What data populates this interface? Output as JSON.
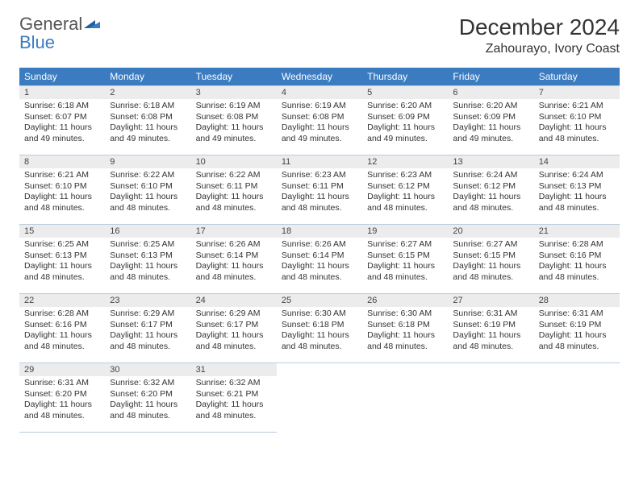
{
  "brand": {
    "word1": "General",
    "word2": "Blue"
  },
  "title": "December 2024",
  "location": "Zahourayo, Ivory Coast",
  "colors": {
    "header_bg": "#3b7bbf",
    "header_text": "#ffffff",
    "daynum_bg": "#ececec",
    "cell_border": "#b8cce0",
    "page_bg": "#ffffff",
    "text": "#333333",
    "logo_gray": "#555555",
    "logo_blue": "#3b7bbf"
  },
  "typography": {
    "month_title_size": 28,
    "location_size": 16,
    "day_header_size": 12,
    "body_size": 10.5
  },
  "day_headers": [
    "Sunday",
    "Monday",
    "Tuesday",
    "Wednesday",
    "Thursday",
    "Friday",
    "Saturday"
  ],
  "labels": {
    "sunrise": "Sunrise:",
    "sunset": "Sunset:",
    "daylight": "Daylight:"
  },
  "weeks": [
    [
      {
        "num": "1",
        "sunrise": "6:18 AM",
        "sunset": "6:07 PM",
        "daylight": "11 hours and 49 minutes."
      },
      {
        "num": "2",
        "sunrise": "6:18 AM",
        "sunset": "6:08 PM",
        "daylight": "11 hours and 49 minutes."
      },
      {
        "num": "3",
        "sunrise": "6:19 AM",
        "sunset": "6:08 PM",
        "daylight": "11 hours and 49 minutes."
      },
      {
        "num": "4",
        "sunrise": "6:19 AM",
        "sunset": "6:08 PM",
        "daylight": "11 hours and 49 minutes."
      },
      {
        "num": "5",
        "sunrise": "6:20 AM",
        "sunset": "6:09 PM",
        "daylight": "11 hours and 49 minutes."
      },
      {
        "num": "6",
        "sunrise": "6:20 AM",
        "sunset": "6:09 PM",
        "daylight": "11 hours and 49 minutes."
      },
      {
        "num": "7",
        "sunrise": "6:21 AM",
        "sunset": "6:10 PM",
        "daylight": "11 hours and 48 minutes."
      }
    ],
    [
      {
        "num": "8",
        "sunrise": "6:21 AM",
        "sunset": "6:10 PM",
        "daylight": "11 hours and 48 minutes."
      },
      {
        "num": "9",
        "sunrise": "6:22 AM",
        "sunset": "6:10 PM",
        "daylight": "11 hours and 48 minutes."
      },
      {
        "num": "10",
        "sunrise": "6:22 AM",
        "sunset": "6:11 PM",
        "daylight": "11 hours and 48 minutes."
      },
      {
        "num": "11",
        "sunrise": "6:23 AM",
        "sunset": "6:11 PM",
        "daylight": "11 hours and 48 minutes."
      },
      {
        "num": "12",
        "sunrise": "6:23 AM",
        "sunset": "6:12 PM",
        "daylight": "11 hours and 48 minutes."
      },
      {
        "num": "13",
        "sunrise": "6:24 AM",
        "sunset": "6:12 PM",
        "daylight": "11 hours and 48 minutes."
      },
      {
        "num": "14",
        "sunrise": "6:24 AM",
        "sunset": "6:13 PM",
        "daylight": "11 hours and 48 minutes."
      }
    ],
    [
      {
        "num": "15",
        "sunrise": "6:25 AM",
        "sunset": "6:13 PM",
        "daylight": "11 hours and 48 minutes."
      },
      {
        "num": "16",
        "sunrise": "6:25 AM",
        "sunset": "6:13 PM",
        "daylight": "11 hours and 48 minutes."
      },
      {
        "num": "17",
        "sunrise": "6:26 AM",
        "sunset": "6:14 PM",
        "daylight": "11 hours and 48 minutes."
      },
      {
        "num": "18",
        "sunrise": "6:26 AM",
        "sunset": "6:14 PM",
        "daylight": "11 hours and 48 minutes."
      },
      {
        "num": "19",
        "sunrise": "6:27 AM",
        "sunset": "6:15 PM",
        "daylight": "11 hours and 48 minutes."
      },
      {
        "num": "20",
        "sunrise": "6:27 AM",
        "sunset": "6:15 PM",
        "daylight": "11 hours and 48 minutes."
      },
      {
        "num": "21",
        "sunrise": "6:28 AM",
        "sunset": "6:16 PM",
        "daylight": "11 hours and 48 minutes."
      }
    ],
    [
      {
        "num": "22",
        "sunrise": "6:28 AM",
        "sunset": "6:16 PM",
        "daylight": "11 hours and 48 minutes."
      },
      {
        "num": "23",
        "sunrise": "6:29 AM",
        "sunset": "6:17 PM",
        "daylight": "11 hours and 48 minutes."
      },
      {
        "num": "24",
        "sunrise": "6:29 AM",
        "sunset": "6:17 PM",
        "daylight": "11 hours and 48 minutes."
      },
      {
        "num": "25",
        "sunrise": "6:30 AM",
        "sunset": "6:18 PM",
        "daylight": "11 hours and 48 minutes."
      },
      {
        "num": "26",
        "sunrise": "6:30 AM",
        "sunset": "6:18 PM",
        "daylight": "11 hours and 48 minutes."
      },
      {
        "num": "27",
        "sunrise": "6:31 AM",
        "sunset": "6:19 PM",
        "daylight": "11 hours and 48 minutes."
      },
      {
        "num": "28",
        "sunrise": "6:31 AM",
        "sunset": "6:19 PM",
        "daylight": "11 hours and 48 minutes."
      }
    ],
    [
      {
        "num": "29",
        "sunrise": "6:31 AM",
        "sunset": "6:20 PM",
        "daylight": "11 hours and 48 minutes."
      },
      {
        "num": "30",
        "sunrise": "6:32 AM",
        "sunset": "6:20 PM",
        "daylight": "11 hours and 48 minutes."
      },
      {
        "num": "31",
        "sunrise": "6:32 AM",
        "sunset": "6:21 PM",
        "daylight": "11 hours and 48 minutes."
      },
      null,
      null,
      null,
      null
    ]
  ]
}
